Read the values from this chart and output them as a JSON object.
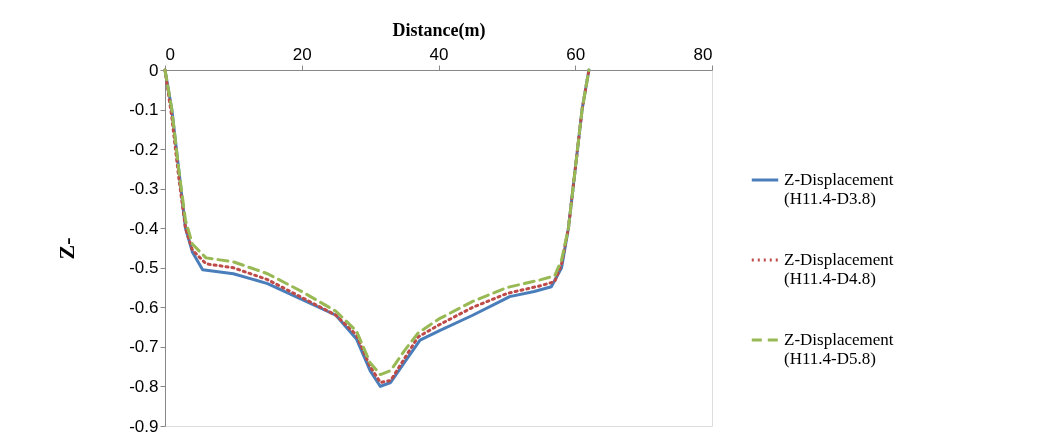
{
  "chart_data": {
    "type": "line",
    "xlabel": "Distance(m)",
    "ylabel": "Z-",
    "xlim": [
      0,
      80
    ],
    "xticks": [
      0,
      20,
      40,
      60,
      80
    ],
    "ylim": [
      -0.9,
      0
    ],
    "yticks": [
      0,
      -0.1,
      -0.2,
      -0.3,
      -0.4,
      -0.5,
      -0.6,
      -0.7,
      -0.8,
      -0.9
    ],
    "grid": false,
    "legend": "right",
    "marker": "none",
    "series": [
      {
        "name": "Z-Displacement (H11.4-D3.8)",
        "color": "#4a7ebb",
        "line_style": "solid",
        "x": [
          0,
          1,
          2,
          3,
          4,
          5.5,
          10,
          15,
          20,
          25,
          28,
          30,
          31.5,
          33,
          35,
          37.3,
          40,
          45,
          50.4,
          54,
          56.5,
          58,
          59,
          60,
          61,
          62
        ],
        "values": [
          0,
          -0.1,
          -0.25,
          -0.4,
          -0.46,
          -0.505,
          -0.515,
          -0.54,
          -0.58,
          -0.62,
          -0.68,
          -0.76,
          -0.8,
          -0.79,
          -0.74,
          -0.683,
          -0.66,
          -0.62,
          -0.573,
          -0.56,
          -0.548,
          -0.5,
          -0.4,
          -0.25,
          -0.1,
          0
        ]
      },
      {
        "name": "Z-Displacement (H11.4-D4.8)",
        "color": "#be4b48",
        "line_style": "dotted",
        "x": [
          0,
          1,
          2,
          3,
          4,
          6,
          10,
          15,
          20,
          25,
          28,
          30,
          31.5,
          33,
          35,
          37,
          40,
          45,
          50,
          55,
          57,
          58,
          59,
          60,
          61,
          62
        ],
        "values": [
          0,
          -0.12,
          -0.27,
          -0.4,
          -0.455,
          -0.49,
          -0.5,
          -0.53,
          -0.575,
          -0.62,
          -0.67,
          -0.75,
          -0.79,
          -0.785,
          -0.73,
          -0.675,
          -0.645,
          -0.6,
          -0.565,
          -0.545,
          -0.535,
          -0.49,
          -0.4,
          -0.25,
          -0.1,
          0
        ]
      },
      {
        "name": "Z-Displacement (H11.4-D5.8)",
        "color": "#98b954",
        "line_style": "dashed",
        "x": [
          0,
          1,
          2,
          3,
          4,
          6,
          10,
          15,
          20,
          25,
          28,
          30,
          31.5,
          33,
          35,
          37,
          40,
          45,
          50,
          55,
          57,
          58,
          59,
          60,
          61,
          62
        ],
        "values": [
          0,
          -0.1,
          -0.25,
          -0.38,
          -0.44,
          -0.475,
          -0.485,
          -0.515,
          -0.56,
          -0.61,
          -0.66,
          -0.74,
          -0.77,
          -0.76,
          -0.71,
          -0.665,
          -0.63,
          -0.585,
          -0.55,
          -0.53,
          -0.52,
          -0.48,
          -0.4,
          -0.25,
          -0.1,
          0
        ]
      }
    ]
  }
}
